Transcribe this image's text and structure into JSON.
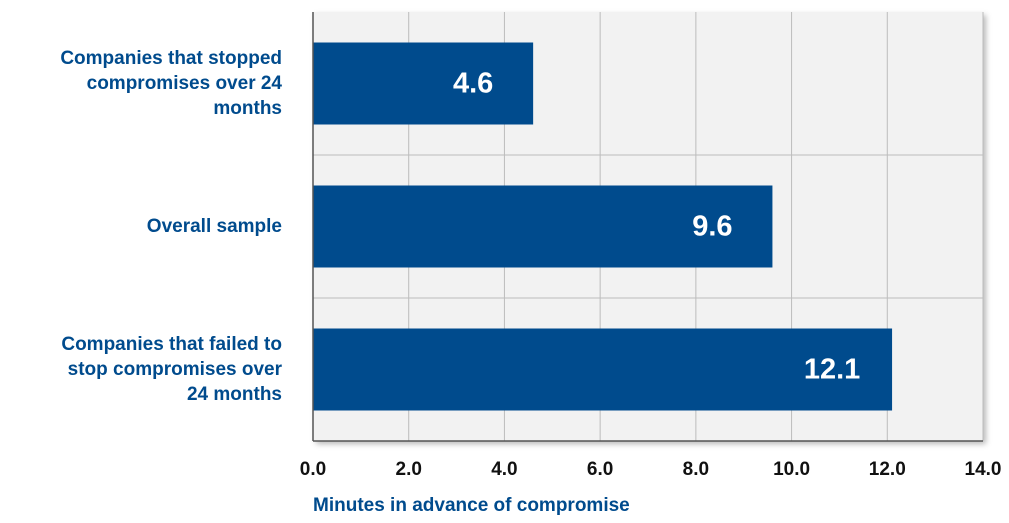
{
  "chart_data": {
    "type": "bar",
    "orientation": "horizontal",
    "categories": [
      [
        "Companies that stopped",
        "compromises over 24",
        "months"
      ],
      [
        "Overall sample"
      ],
      [
        "Companies that failed to",
        "stop compromises over",
        "24 months"
      ]
    ],
    "values": [
      4.6,
      9.6,
      12.1
    ],
    "data_labels": [
      "4.6",
      "9.6",
      "12.1"
    ],
    "xlabel": "Minutes in advance of compromise",
    "xlim": [
      0,
      14
    ],
    "xticks": [
      "0.0",
      "2.0",
      "4.0",
      "6.0",
      "8.0",
      "10.0",
      "12.0",
      "14.0"
    ],
    "grid": true,
    "legend": "none"
  },
  "colors": {
    "bar": "#004b8d",
    "text": "#004b8d",
    "plot_background": "#f2f2f2",
    "grid": "#bcbcbc",
    "axis": "#555555",
    "tick_text": "#111111",
    "data_label": "#ffffff"
  }
}
